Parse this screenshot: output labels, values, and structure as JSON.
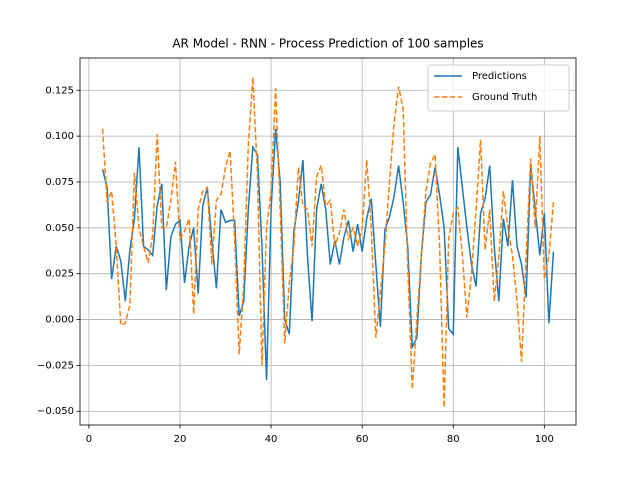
{
  "chart_data": {
    "type": "line",
    "title": "AR Model - RNN - Process Prediction of 100 samples",
    "x": [
      3,
      4,
      5,
      6,
      7,
      8,
      9,
      10,
      11,
      12,
      13,
      14,
      15,
      16,
      17,
      18,
      19,
      20,
      21,
      22,
      23,
      24,
      25,
      26,
      27,
      28,
      29,
      30,
      31,
      32,
      33,
      34,
      35,
      36,
      37,
      38,
      39,
      40,
      41,
      42,
      43,
      44,
      45,
      46,
      47,
      48,
      49,
      50,
      51,
      52,
      53,
      54,
      55,
      56,
      57,
      58,
      59,
      60,
      61,
      62,
      63,
      64,
      65,
      66,
      67,
      68,
      69,
      70,
      71,
      72,
      73,
      74,
      75,
      76,
      77,
      78,
      79,
      80,
      81,
      82,
      83,
      84,
      85,
      86,
      87,
      88,
      89,
      90,
      91,
      92,
      93,
      94,
      95,
      96,
      97,
      98,
      99,
      100,
      101,
      102
    ],
    "series": [
      {
        "name": "Predictions",
        "color": "#1f77b4",
        "linestyle": "solid",
        "values": [
          0.082,
          0.072,
          0.022,
          0.04,
          0.032,
          0.01,
          0.038,
          0.055,
          0.094,
          0.04,
          0.038,
          0.035,
          0.062,
          0.074,
          0.016,
          0.045,
          0.052,
          0.054,
          0.02,
          0.04,
          0.05,
          0.014,
          0.062,
          0.072,
          0.043,
          0.017,
          0.06,
          0.053,
          0.054,
          0.054,
          0.002,
          0.01,
          0.06,
          0.094,
          0.09,
          0.04,
          -0.033,
          0.06,
          0.104,
          0.075,
          0.0,
          -0.008,
          0.048,
          0.064,
          0.087,
          0.034,
          -0.001,
          0.06,
          0.074,
          0.06,
          0.03,
          0.043,
          0.03,
          0.045,
          0.054,
          0.037,
          0.052,
          0.037,
          0.055,
          0.066,
          0.03,
          -0.004,
          0.049,
          0.056,
          0.067,
          0.084,
          0.064,
          0.04,
          -0.015,
          -0.01,
          0.035,
          0.064,
          0.068,
          0.083,
          0.068,
          0.05,
          -0.005,
          -0.008,
          0.094,
          0.072,
          0.05,
          0.03,
          0.018,
          0.058,
          0.066,
          0.084,
          0.04,
          0.01,
          0.055,
          0.04,
          0.076,
          0.04,
          0.03,
          0.012,
          0.084,
          0.06,
          0.035,
          0.058,
          -0.002,
          0.037
        ]
      },
      {
        "name": "Ground Truth",
        "color": "#ff7f0e",
        "linestyle": "dashed",
        "values": [
          0.104,
          0.064,
          0.07,
          0.04,
          -0.003,
          -0.002,
          0.008,
          0.08,
          0.05,
          0.04,
          0.031,
          0.046,
          0.101,
          0.05,
          0.05,
          0.065,
          0.086,
          0.044,
          0.048,
          0.055,
          0.003,
          0.06,
          0.07,
          0.072,
          0.03,
          0.065,
          0.068,
          0.083,
          0.092,
          0.044,
          -0.019,
          0.02,
          0.095,
          0.132,
          0.08,
          -0.025,
          0.05,
          0.07,
          0.126,
          0.06,
          -0.013,
          0.02,
          0.04,
          0.083,
          0.062,
          0.06,
          0.04,
          0.078,
          0.084,
          0.062,
          0.065,
          0.04,
          0.047,
          0.06,
          0.044,
          0.05,
          0.04,
          0.05,
          0.087,
          0.05,
          -0.01,
          0.015,
          0.04,
          0.075,
          0.107,
          0.127,
          0.115,
          0.03,
          -0.038,
          0.0,
          0.035,
          0.07,
          0.085,
          0.09,
          0.04,
          -0.048,
          0.044,
          0.058,
          0.061,
          0.035,
          0.001,
          0.025,
          0.06,
          0.098,
          0.038,
          0.06,
          0.01,
          0.034,
          0.07,
          0.05,
          0.035,
          0.01,
          -0.023,
          0.035,
          0.088,
          0.05,
          0.1,
          0.022,
          0.035,
          0.064
        ]
      }
    ],
    "xlim": [
      -1.95,
      106.95
    ],
    "ylim": [
      -0.0575,
      0.1426
    ],
    "xticks": [
      0,
      20,
      40,
      60,
      80,
      100
    ],
    "yticks": [
      {
        "value": -0.05,
        "label": "−0.050"
      },
      {
        "value": -0.025,
        "label": "−0.025"
      },
      {
        "value": 0,
        "label": "0.000"
      },
      {
        "value": 0.025,
        "label": "0.025"
      },
      {
        "value": 0.05,
        "label": "0.050"
      },
      {
        "value": 0.075,
        "label": "0.075"
      },
      {
        "value": 0.1,
        "label": "0.100"
      },
      {
        "value": 0.125,
        "label": "0.125"
      }
    ],
    "grid": true,
    "legend": "upper right"
  }
}
